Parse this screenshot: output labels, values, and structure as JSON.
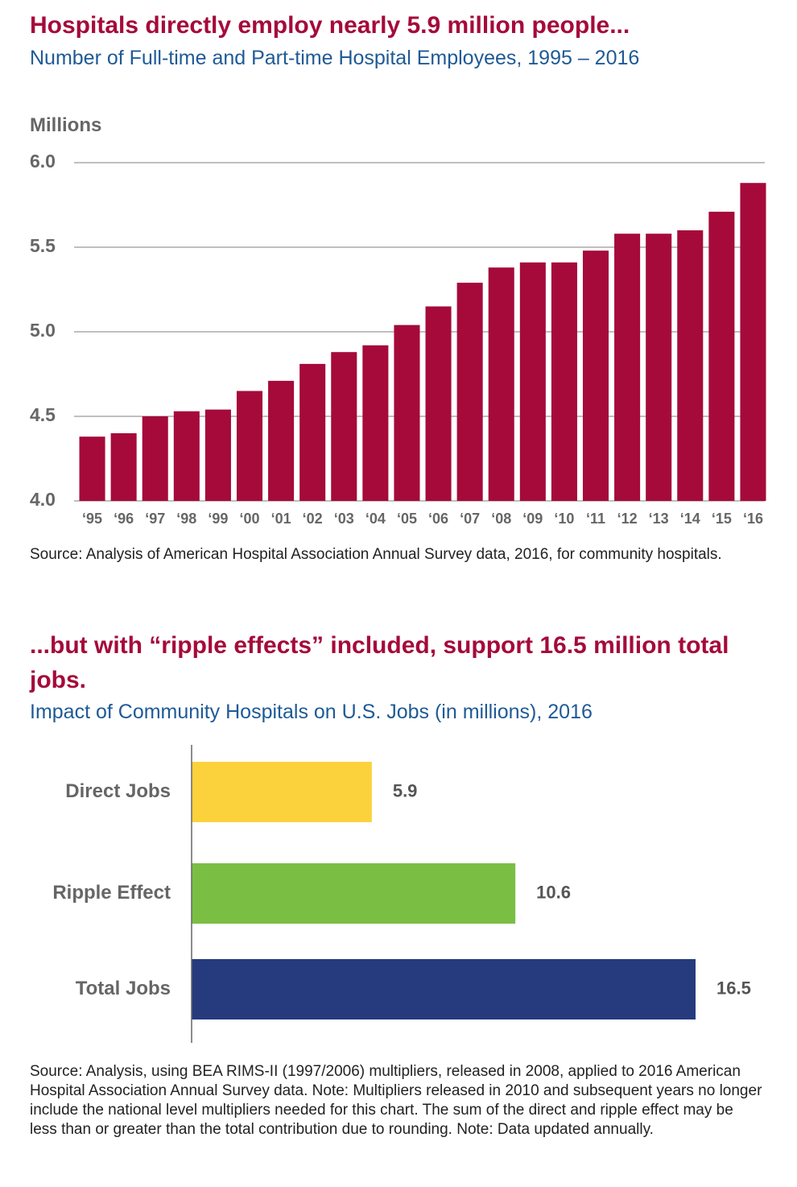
{
  "chart_data": [
    {
      "type": "bar",
      "title": "Hospitals directly employ nearly 5.9 million people...",
      "subtitle": "Number of Full-time and Part-time Hospital Employees, 1995 – 2016",
      "y_label": "Millions",
      "categories": [
        "‘95",
        "‘96",
        "‘97",
        "‘98",
        "‘99",
        "‘00",
        "‘01",
        "‘02",
        "‘03",
        "‘04",
        "‘05",
        "‘06",
        "‘07",
        "‘08",
        "‘09",
        "‘10",
        "‘11",
        "‘12",
        "‘13",
        "‘14",
        "‘15",
        "‘16"
      ],
      "values": [
        4.38,
        4.4,
        4.5,
        4.53,
        4.54,
        4.65,
        4.71,
        4.81,
        4.88,
        4.92,
        5.04,
        5.15,
        5.29,
        5.38,
        5.41,
        5.41,
        5.48,
        5.58,
        5.58,
        5.6,
        5.71,
        5.88
      ],
      "color": "#a50a3a",
      "ylim": [
        4,
        6
      ],
      "yticks": [
        {
          "value": 4,
          "label": "4.0"
        },
        4.5,
        {
          "value": 5,
          "label": "5.0"
        },
        5.5,
        {
          "value": 6,
          "label": "6.0"
        }
      ],
      "grid": true,
      "source": "Source: Analysis of American Hospital Association Annual Survey data, 2016, for community hospitals."
    },
    {
      "type": "hbar",
      "title": "...but with “ripple effects” included, support 16.5 million total jobs.",
      "subtitle": "Impact of Community Hospitals on U.S. Jobs (in millions), 2016",
      "categories": [
        "Direct Jobs",
        "Ripple Effect",
        "Total Jobs"
      ],
      "values": [
        5.9,
        10.6,
        16.5
      ],
      "colors": [
        "#fcd23c",
        "#7abf44",
        "#263a7e"
      ],
      "source": "Source: Analysis, using BEA RIMS-II (1997/2006) multipliers, released in 2008, applied to 2016 American Hospital Association Annual Survey data. Note: Multipliers released in 2010 and subsequent years no longer include the national level multipliers needed for this chart. The sum of the direct and ripple effect may be less than or greater than the total contribution due to rounding. Note: Data updated annually."
    }
  ]
}
